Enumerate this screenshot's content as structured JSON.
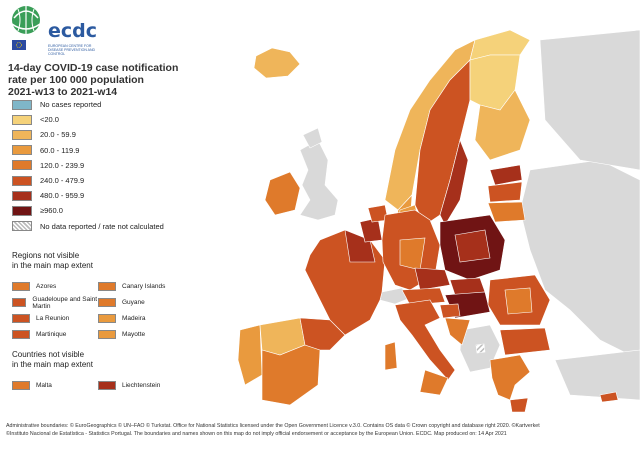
{
  "logo": {
    "name": "ecdc",
    "subtitle": "EUROPEAN CENTRE FOR DISEASE PREVENTION AND CONTROL"
  },
  "title": {
    "line1": "14-day COVID-19 case notification",
    "line2": "rate per 100 000 population",
    "line3": "2021-w13 to 2021-w14"
  },
  "legend": {
    "items": [
      {
        "label": "No cases reported",
        "color": "#7fb6c8"
      },
      {
        "label": "<20.0",
        "color": "#f5d27a"
      },
      {
        "label": "20.0 - 59.9",
        "color": "#efb55a"
      },
      {
        "label": "60.0 - 119.9",
        "color": "#e99a3e"
      },
      {
        "label": "120.0 - 239.9",
        "color": "#df7a2b"
      },
      {
        "label": "240.0 - 479.9",
        "color": "#cc5322"
      },
      {
        "label": "480.0 - 959.9",
        "color": "#a6301b"
      },
      {
        "label": "≥960.0",
        "color": "#701414"
      },
      {
        "label": "No data reported / rate not calculated",
        "color": "hatch"
      }
    ]
  },
  "regions": {
    "title_line1": "Regions not visible",
    "title_line2": "in the main map extent",
    "items": [
      {
        "label": "Azores",
        "color": "#df7a2b"
      },
      {
        "label": "Canary Islands",
        "color": "#df7a2b"
      },
      {
        "label": "Guadeloupe and Saint Martin",
        "color": "#cc5322"
      },
      {
        "label": "Guyane",
        "color": "#df7a2b"
      },
      {
        "label": "La Reunion",
        "color": "#cc5322"
      },
      {
        "label": "Madeira",
        "color": "#e99a3e"
      },
      {
        "label": "Martinique",
        "color": "#cc5322"
      },
      {
        "label": "Mayotte",
        "color": "#e99a3e"
      }
    ]
  },
  "countries": {
    "title_line1": "Countries not visible",
    "title_line2": "in the main map extent",
    "items": [
      {
        "label": "Malta",
        "color": "#df7a2b"
      },
      {
        "label": "Liechtenstein",
        "color": "#a6301b"
      }
    ]
  },
  "footer": {
    "line1": "Administrative boundaries: © EuroGeographics © UN–FAO © Turkstat. Office for National Statistics licensed under the Open Government Licence v.3.0. Contains OS data © Crown copyright and database right 2020. ©Kartverket",
    "line2": "©Instituto Nacional de Estatística - Statistics Portugal. The boundaries and names shown on this map do not imply official endorsement or acceptance by the European Union. ECDC. Map produced on: 14 Apr 2021"
  }
}
